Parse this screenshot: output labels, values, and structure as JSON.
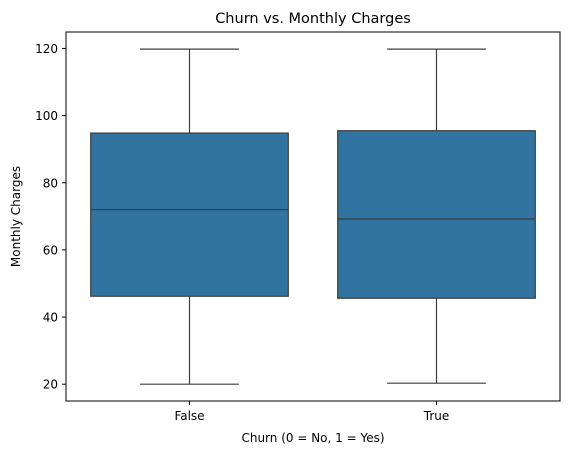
{
  "chart_data": {
    "type": "box",
    "title": "Churn vs. Monthly Charges",
    "xlabel": "Churn (0 = No, 1 = Yes)",
    "ylabel": "Monthly Charges",
    "categories": [
      "False",
      "True"
    ],
    "boxes": [
      {
        "category": "False",
        "min": 20.0,
        "q1": 46.2,
        "median": 72.0,
        "q3": 94.8,
        "max": 119.8
      },
      {
        "category": "True",
        "min": 20.3,
        "q1": 45.6,
        "median": 69.2,
        "q3": 95.5,
        "max": 119.8
      }
    ],
    "ylim": [
      15.0,
      124.9
    ],
    "yticks": [
      20,
      40,
      60,
      80,
      100,
      120
    ],
    "grid": false,
    "legend": "none",
    "box_color": "#3274a1",
    "line_color": "#3d3d3d"
  }
}
